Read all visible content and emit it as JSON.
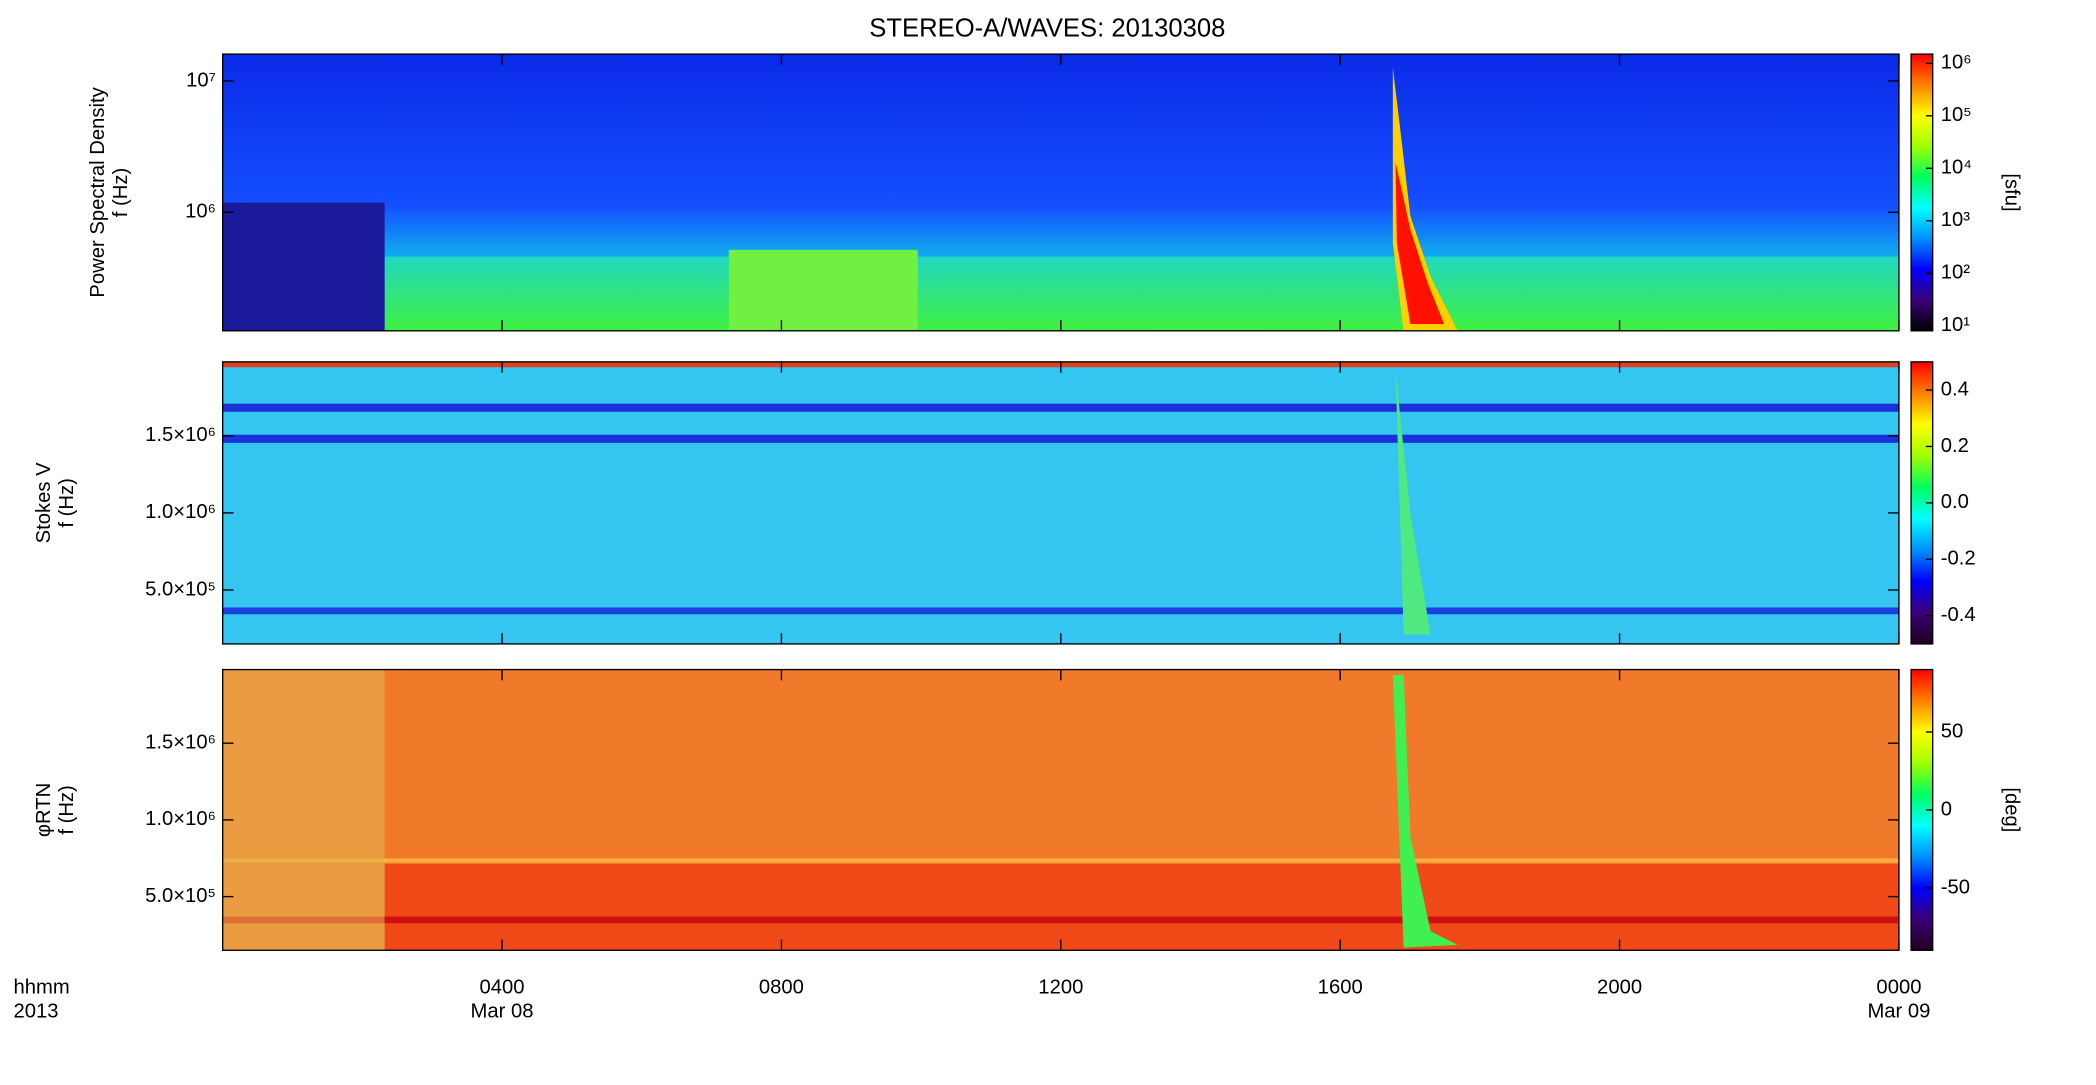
{
  "chart_data": [
    {
      "type": "spectrogram",
      "title": "STEREO-A/WAVES: 20130308",
      "ylabel": [
        "Power Spectral Density",
        "f (Hz)"
      ],
      "ylog": true,
      "ylim": [
        125000,
        16000000
      ],
      "yticks": [
        {
          "value": 1000000,
          "label": "10⁶"
        },
        {
          "value": 10000000,
          "label": "10⁷"
        }
      ],
      "clog": true,
      "clim": [
        8,
        1500000
      ],
      "cticks": [
        {
          "value": 10,
          "label": "10¹"
        },
        {
          "value": 100,
          "label": "10²"
        },
        {
          "value": 1000,
          "label": "10³"
        },
        {
          "value": 10000,
          "label": "10⁴"
        },
        {
          "value": 100000,
          "label": "10⁵"
        },
        {
          "value": 1000000,
          "label": "10⁶"
        }
      ],
      "clabel": "[sfu]",
      "colormap": [
        "#000000",
        "#3a0078",
        "#0000ff",
        "#0090ff",
        "#00ffff",
        "#00ff60",
        "#a0ff00",
        "#ffff00",
        "#ff8000",
        "#ff0000"
      ]
    },
    {
      "type": "spectrogram",
      "ylabel": [
        "Stokes V",
        "f (Hz)"
      ],
      "ylog": false,
      "ylim": [
        150000,
        1980000
      ],
      "yticks": [
        {
          "value": 500000,
          "label": "5.0×10⁵"
        },
        {
          "value": 1000000,
          "label": "1.0×10⁶"
        },
        {
          "value": 1500000,
          "label": "1.5×10⁶"
        }
      ],
      "clog": false,
      "clim": [
        -0.5,
        0.5
      ],
      "cticks": [
        -0.4,
        -0.2,
        {
          "value": 0,
          "label": "0.0"
        },
        0.2,
        0.4
      ],
      "colormap": [
        "#200020",
        "#3a0078",
        "#0000ff",
        "#0090ff",
        "#00ffff",
        "#00ff60",
        "#a0ff00",
        "#ffff00",
        "#ff8000",
        "#ff0000"
      ]
    },
    {
      "type": "spectrogram",
      "ylabel": [
        "φRTN",
        "f (Hz)"
      ],
      "ylog": false,
      "ylim": [
        150000,
        1980000
      ],
      "yticks": [
        {
          "value": 500000,
          "label": "5.0×10⁵"
        },
        {
          "value": 1000000,
          "label": "1.0×10⁶"
        },
        {
          "value": 1500000,
          "label": "1.5×10⁶"
        }
      ],
      "clog": false,
      "clim": [
        -90,
        90
      ],
      "cticks": [
        -50,
        0,
        50
      ],
      "clabel": "[deg]",
      "colormap": [
        "#200020",
        "#3a0078",
        "#0000ff",
        "#0090ff",
        "#00ffff",
        "#00ff60",
        "#a0ff00",
        "#ffff00",
        "#ff8000",
        "#ff0000"
      ],
      "xlim": [
        0,
        24
      ],
      "xlabel": "hhmm",
      "year_label": "2013",
      "xticks": [
        {
          "value": 4,
          "label": "0400"
        },
        {
          "value": 8,
          "label": "0800"
        },
        {
          "value": 12,
          "label": "1200"
        },
        {
          "value": 16,
          "label": "1600"
        },
        {
          "value": 20,
          "label": "2000"
        },
        {
          "value": 24,
          "label": "0000"
        }
      ],
      "date_labels": [
        "Mar 08",
        null,
        null,
        null,
        null,
        "Mar 09"
      ]
    }
  ]
}
